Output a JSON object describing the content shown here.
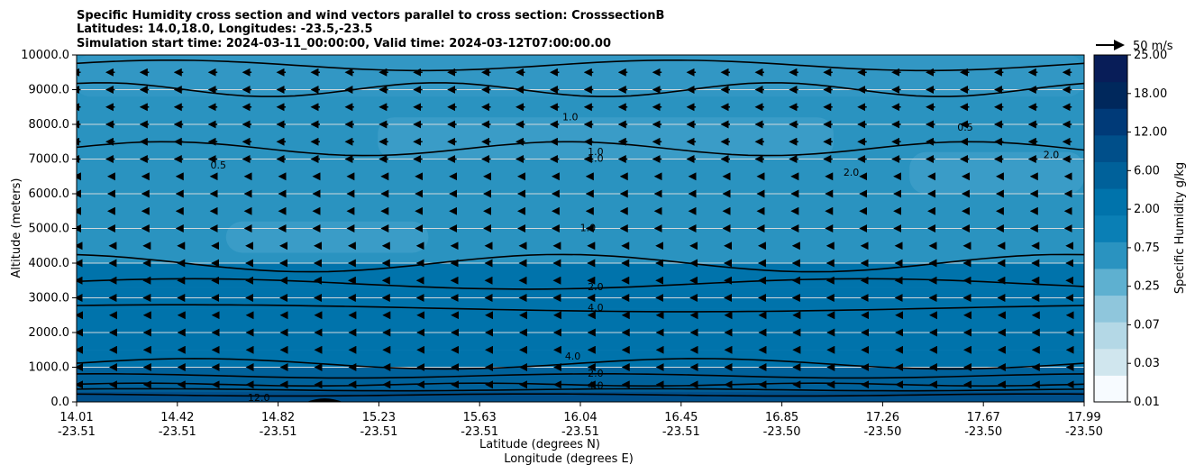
{
  "chart_data": {
    "type": "contour",
    "title_lines": [
      "Specific Humidity cross section and wind vectors parallel to cross section: CrosssectionB",
      "Latitudes: 14.0,18.0, Longitudes: -23.5,-23.5",
      "Simulation start time: 2024-03-11_00:00:00, Valid time: 2024-03-12T07:00:00.00"
    ],
    "ylabel": "Altitude (meters)",
    "xlabel_lat": "Latitude (degrees N)",
    "xlabel_lon": "Longitude (degrees E)",
    "ylim": [
      0,
      10000
    ],
    "y_ticks": [
      "0.0",
      "1000.0",
      "2000.0",
      "3000.0",
      "4000.0",
      "5000.0",
      "6000.0",
      "7000.0",
      "8000.0",
      "9000.0",
      "10000.0"
    ],
    "y_tick_values": [
      0,
      1000,
      2000,
      3000,
      4000,
      5000,
      6000,
      7000,
      8000,
      9000,
      10000
    ],
    "x_ticks_lat": [
      "14.01",
      "14.42",
      "14.82",
      "15.23",
      "15.63",
      "16.04",
      "16.45",
      "16.85",
      "17.26",
      "17.67",
      "17.99"
    ],
    "x_ticks_lon": [
      "-23.51",
      "-23.51",
      "-23.51",
      "-23.51",
      "-23.51",
      "-23.51",
      "-23.51",
      "-23.50",
      "-23.50",
      "-23.50",
      "-23.50"
    ],
    "colorbar": {
      "label": "Specific Humidity g/kg",
      "levels": [
        "0.01",
        "0.03",
        "0.07",
        "0.25",
        "0.75",
        "2.00",
        "6.00",
        "12.00",
        "18.00",
        "25.00"
      ],
      "level_values": [
        0.01,
        0.03,
        0.07,
        0.25,
        0.75,
        2.0,
        6.0,
        12.0,
        18.0,
        25.0
      ],
      "colors": [
        "#f7fbff",
        "#d0e6ee",
        "#b4d8e6",
        "#8fc6dc",
        "#5eb0d0",
        "#2a93c0",
        "#0a7fb5",
        "#0073ab",
        "#00619a",
        "#004f8a",
        "#003a78",
        "#00285c",
        "#081d58"
      ]
    },
    "wind_reference": "50 m/s",
    "humidity_layers": [
      {
        "altitude": 0,
        "value": 12.0
      },
      {
        "altitude": 300,
        "value": 8.0
      },
      {
        "altitude": 500,
        "value": 6.0
      },
      {
        "altitude": 1000,
        "value": 4.5
      },
      {
        "altitude": 1500,
        "value": 4.0
      },
      {
        "altitude": 2700,
        "value": 4.0
      },
      {
        "altitude": 3300,
        "value": 2.0
      },
      {
        "altitude": 4000,
        "value": 1.5
      },
      {
        "altitude": 7000,
        "value": 1.0
      },
      {
        "altitude": 9000,
        "value": 0.8
      },
      {
        "altitude": 10000,
        "value": 0.5
      }
    ],
    "contour_labels": [
      {
        "text": "0.5",
        "lat": 14.57,
        "alt": 6800
      },
      {
        "text": "1.0",
        "lat": 15.96,
        "alt": 8200
      },
      {
        "text": "1.0",
        "lat": 16.06,
        "alt": 7200
      },
      {
        "text": "1.0",
        "lat": 16.06,
        "alt": 7000
      },
      {
        "text": "1.0",
        "lat": 16.03,
        "alt": 5000
      },
      {
        "text": "2.0",
        "lat": 17.07,
        "alt": 6600
      },
      {
        "text": "2.0",
        "lat": 17.86,
        "alt": 7100
      },
      {
        "text": "0.5",
        "lat": 17.52,
        "alt": 7900
      },
      {
        "text": "2.0",
        "lat": 16.06,
        "alt": 3300
      },
      {
        "text": "4.0",
        "lat": 16.06,
        "alt": 2700
      },
      {
        "text": "4.0",
        "lat": 15.97,
        "alt": 1300
      },
      {
        "text": "2.0",
        "lat": 16.06,
        "alt": 800
      },
      {
        "text": "4.0",
        "lat": 16.06,
        "alt": 450
      },
      {
        "text": "12.0",
        "lat": 14.73,
        "alt": 100
      }
    ]
  }
}
